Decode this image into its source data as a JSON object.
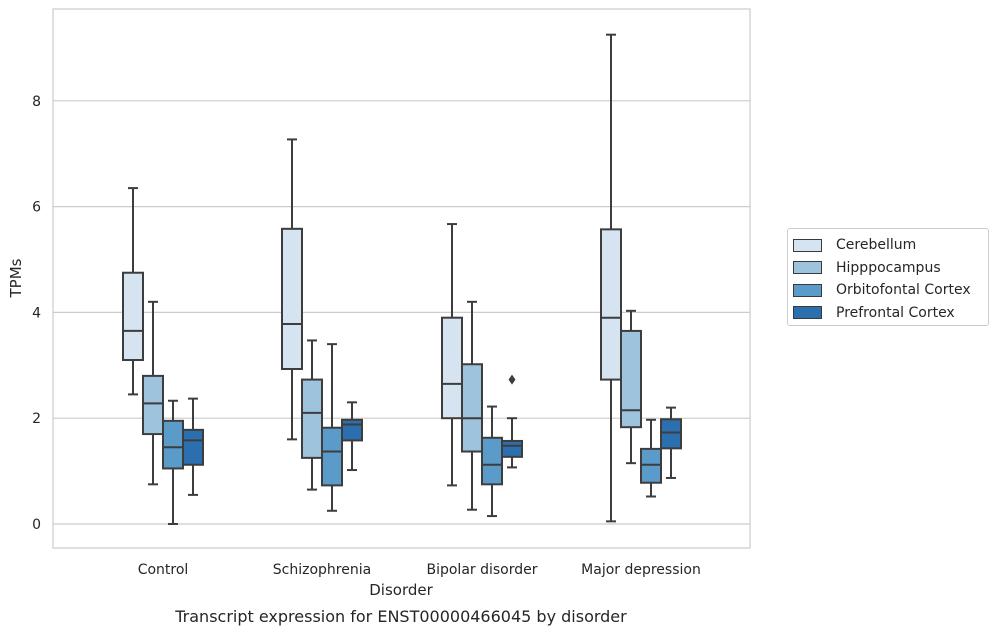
{
  "chart_data": {
    "type": "box",
    "title": "Transcript expression for ENST00000466045 by disorder",
    "xlabel": "Disorder",
    "ylabel": "TPMs",
    "ylim": [
      -0.45,
      9.8
    ],
    "yticks": [
      0,
      2,
      4,
      6,
      8
    ],
    "grid": true,
    "legend_position": "right",
    "categories": [
      "Control",
      "Schizophrenia",
      "Bipolar disorder",
      "Major depression"
    ],
    "series": [
      {
        "name": "Cerebellum",
        "color": "#d6e3f1",
        "boxes": [
          {
            "whisker_low": 2.45,
            "q1": 3.1,
            "median": 3.65,
            "q3": 4.75,
            "whisker_high": 6.35
          },
          {
            "whisker_low": 1.6,
            "q1": 2.93,
            "median": 3.78,
            "q3": 5.58,
            "whisker_high": 7.27
          },
          {
            "whisker_low": 0.73,
            "q1": 2.0,
            "median": 2.65,
            "q3": 3.9,
            "whisker_high": 5.67
          },
          {
            "whisker_low": 0.05,
            "q1": 2.73,
            "median": 3.9,
            "q3": 5.57,
            "whisker_high": 9.25
          }
        ]
      },
      {
        "name": "Hipppocampus",
        "color": "#9dc3dd",
        "boxes": [
          {
            "whisker_low": 0.75,
            "q1": 1.7,
            "median": 2.28,
            "q3": 2.8,
            "whisker_high": 4.2
          },
          {
            "whisker_low": 0.65,
            "q1": 1.25,
            "median": 2.1,
            "q3": 2.73,
            "whisker_high": 3.47
          },
          {
            "whisker_low": 0.27,
            "q1": 1.37,
            "median": 2.0,
            "q3": 3.02,
            "whisker_high": 4.2
          },
          {
            "whisker_low": 1.15,
            "q1": 1.83,
            "median": 2.15,
            "q3": 3.65,
            "whisker_high": 4.03
          }
        ]
      },
      {
        "name": "Orbitofontal Cortex",
        "color": "#5a9bc9",
        "boxes": [
          {
            "whisker_low": 0.0,
            "q1": 1.05,
            "median": 1.45,
            "q3": 1.95,
            "whisker_high": 2.33
          },
          {
            "whisker_low": 0.25,
            "q1": 0.73,
            "median": 1.37,
            "q3": 1.82,
            "whisker_high": 3.4
          },
          {
            "whisker_low": 0.15,
            "q1": 0.75,
            "median": 1.12,
            "q3": 1.63,
            "whisker_high": 2.22
          },
          {
            "whisker_low": 0.52,
            "q1": 0.78,
            "median": 1.12,
            "q3": 1.42,
            "whisker_high": 1.97
          }
        ]
      },
      {
        "name": "Prefrontal Cortex",
        "color": "#2b6fae",
        "boxes": [
          {
            "whisker_low": 0.55,
            "q1": 1.12,
            "median": 1.58,
            "q3": 1.78,
            "whisker_high": 2.37
          },
          {
            "whisker_low": 1.02,
            "q1": 1.58,
            "median": 1.88,
            "q3": 1.97,
            "whisker_high": 2.3
          },
          {
            "whisker_low": 1.07,
            "q1": 1.27,
            "median": 1.48,
            "q3": 1.57,
            "whisker_high": 2.0,
            "outliers": [
              2.73
            ]
          },
          {
            "whisker_low": 0.87,
            "q1": 1.43,
            "median": 1.73,
            "q3": 1.98,
            "whisker_high": 2.2
          }
        ]
      }
    ]
  }
}
